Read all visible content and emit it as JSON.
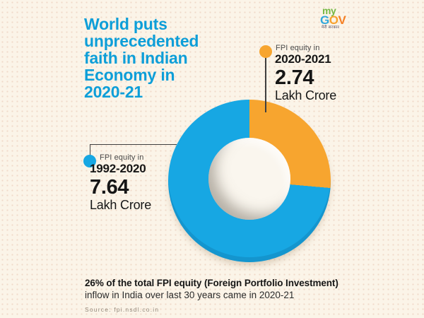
{
  "poster": {
    "title": "World puts\nunprecedented\nfaith in Indian\nEconomy in\n2020-21",
    "title_color": "#0d9ed8",
    "background_color": "#fbf4e8"
  },
  "logo": {
    "my": "my",
    "g": "G",
    "o": "O",
    "v": "V",
    "tagline": "मेरी सरकार",
    "my_color": "#76b844",
    "g_color": "#31a8dc",
    "o_color": "#f7a12c",
    "v_color": "#f58025"
  },
  "chart_data": {
    "type": "pie",
    "donut": true,
    "start_angle_deg": 0,
    "title": "World puts unprecedented faith in Indian Economy in 2020-21",
    "segments": [
      {
        "label": "FPI equity in",
        "period": "2020-2021",
        "value": 2.74,
        "value_label": "2.74",
        "unit": "Lakh Crore",
        "color": "#f7a52f",
        "percent": 26.4
      },
      {
        "label": "FPI equity in",
        "period": "1992-2020",
        "value": 7.64,
        "value_label": "7.64",
        "unit": "Lakh Crore",
        "color": "#17a7e3",
        "percent": 73.6
      }
    ],
    "annotation": "26% of the total FPI equity (Foreign Portfolio Investment) inflow in India over last 30 years came in 2020-21",
    "source": "fpi.nsdl.co.in"
  },
  "footer": {
    "bold_line": "26% of the total FPI equity (Foreign Portfolio Investment)",
    "regular_line": "inflow in India over last 30 years came in 2020-21",
    "source": "Source: fpi.nsdl.co.in"
  }
}
